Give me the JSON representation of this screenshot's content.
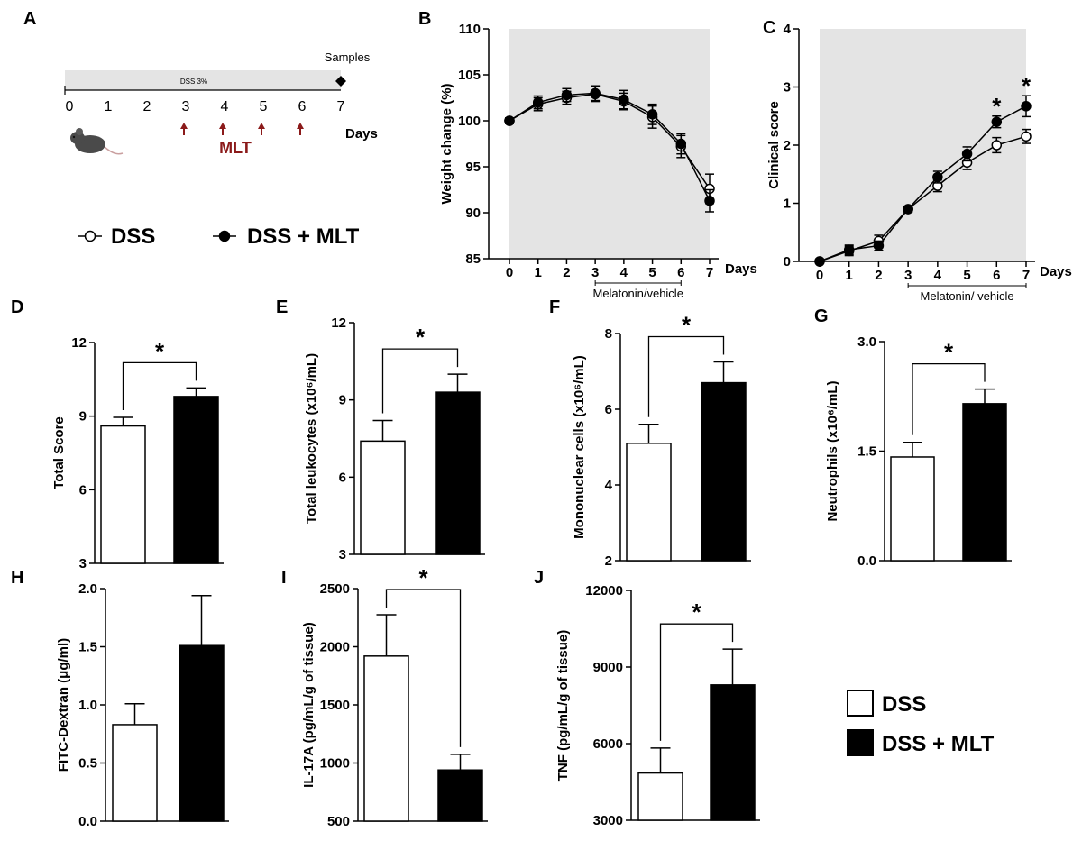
{
  "legend_top": {
    "dss": "DSS",
    "dss_mlt": "DSS + MLT"
  },
  "legend_bottom": {
    "dss": "DSS",
    "dss_mlt": "DSS + MLT"
  },
  "colors": {
    "dss": "#ffffff",
    "dss_mlt": "#000000",
    "shade": "#e4e4e4",
    "arrow": "#8b1a1a"
  },
  "timeline": {
    "panel": "A",
    "bar_label": "DSS 3%",
    "samples_label": "Samples",
    "days_label": "Days",
    "treatment_label": "MLT",
    "ticks": [
      "0",
      "1",
      "2",
      "3",
      "4",
      "5",
      "6",
      "7"
    ],
    "treatment_days": [
      3,
      4,
      5,
      6
    ]
  },
  "chart_data": [
    {
      "panel": "B",
      "type": "line",
      "ylabel": "Weight change (%)",
      "xlabel": "Days",
      "x": [
        0,
        1,
        2,
        3,
        4,
        5,
        6,
        7
      ],
      "ylim": [
        85,
        110
      ],
      "yticks": [
        85,
        90,
        95,
        100,
        105,
        110
      ],
      "shaded": true,
      "bracket": {
        "from": 3,
        "to": 6,
        "label": "Melatonin/vehicle"
      },
      "series": [
        {
          "key": "dss",
          "values": [
            100,
            101.8,
            102.5,
            102.9,
            102.1,
            100.4,
            97.2,
            92.6
          ],
          "errors": [
            0.3,
            0.7,
            0.7,
            0.8,
            0.9,
            1.2,
            1.2,
            1.6
          ]
        },
        {
          "key": "dss_mlt",
          "values": [
            100,
            102.0,
            102.8,
            103.0,
            102.3,
            100.7,
            97.5,
            91.3
          ],
          "errors": [
            0.3,
            0.7,
            0.7,
            0.8,
            1.0,
            1.1,
            1.1,
            1.2
          ]
        }
      ],
      "stars_x": []
    },
    {
      "panel": "C",
      "type": "line",
      "ylabel": "Clinical score",
      "xlabel": "Days",
      "x": [
        0,
        1,
        2,
        3,
        4,
        5,
        6,
        7
      ],
      "ylim": [
        0,
        4
      ],
      "yticks": [
        0,
        1,
        2,
        3,
        4
      ],
      "shaded": true,
      "bracket": {
        "from": 3,
        "to": 7,
        "label": "Melatonin/ vehicle"
      },
      "series": [
        {
          "key": "dss",
          "values": [
            0,
            0.18,
            0.35,
            0.9,
            1.3,
            1.7,
            2.0,
            2.15
          ],
          "errors": [
            0.02,
            0.08,
            0.1,
            0.05,
            0.1,
            0.12,
            0.13,
            0.12
          ]
        },
        {
          "key": "dss_mlt",
          "values": [
            0,
            0.2,
            0.27,
            0.9,
            1.45,
            1.85,
            2.4,
            2.67
          ],
          "errors": [
            0.02,
            0.08,
            0.08,
            0.05,
            0.1,
            0.12,
            0.1,
            0.18
          ]
        }
      ],
      "stars_x": [
        6,
        7
      ]
    },
    {
      "panel": "D",
      "type": "bar",
      "ylabel": "Total Score",
      "ylim": [
        3,
        12
      ],
      "yticks": [
        3,
        6,
        9,
        12
      ],
      "yticklabels": [
        "3",
        "6",
        "9",
        "12"
      ],
      "values": [
        8.6,
        9.8
      ],
      "errors": [
        0.35,
        0.35
      ],
      "star": "*"
    },
    {
      "panel": "E",
      "type": "bar",
      "ylabel": "Total leukocytes (x10⁶/mL)",
      "ylim": [
        3,
        12
      ],
      "yticks": [
        3,
        6,
        9,
        12
      ],
      "yticklabels": [
        "3",
        "6",
        "9",
        "12"
      ],
      "values": [
        7.4,
        9.3
      ],
      "errors": [
        0.8,
        0.7
      ],
      "star": "*"
    },
    {
      "panel": "F",
      "type": "bar",
      "ylabel": "Mononuclear cells (x10⁶/mL)",
      "ylim": [
        2,
        8
      ],
      "yticks": [
        2,
        4,
        6,
        8
      ],
      "yticklabels": [
        "2",
        "4",
        "6",
        "8"
      ],
      "values": [
        5.1,
        6.7
      ],
      "errors": [
        0.5,
        0.55
      ],
      "star": "*"
    },
    {
      "panel": "G",
      "type": "bar",
      "ylabel": "Neutrophils (x10⁶/mL)",
      "ylim": [
        0,
        3
      ],
      "yticks": [
        0,
        1.5,
        3
      ],
      "yticklabels": [
        "0.0",
        "1.5",
        "3.0"
      ],
      "values": [
        1.42,
        2.15
      ],
      "errors": [
        0.2,
        0.2
      ],
      "star": "*"
    },
    {
      "panel": "H",
      "type": "bar",
      "ylabel": "FITC-Dextran (μg/ml)",
      "ylim": [
        0,
        2
      ],
      "yticks": [
        0,
        0.5,
        1,
        1.5,
        2
      ],
      "yticklabels": [
        "0.0",
        "0.5",
        "1.0",
        "1.5",
        "2.0"
      ],
      "values": [
        0.83,
        1.51
      ],
      "errors": [
        0.18,
        0.43
      ],
      "star": ""
    },
    {
      "panel": "I",
      "type": "bar",
      "ylabel": "IL-17A (pg/mL/g of tissue)",
      "ylim": [
        500,
        2500
      ],
      "yticks": [
        500,
        1000,
        1500,
        2000,
        2500
      ],
      "yticklabels": [
        "500",
        "1000",
        "1500",
        "2000",
        "2500"
      ],
      "values": [
        1920,
        940
      ],
      "errors": [
        355,
        135
      ],
      "star": "*"
    },
    {
      "panel": "J",
      "type": "bar",
      "ylabel": "TNF (pg/mL/g of tissue)",
      "ylim": [
        3000,
        12000
      ],
      "yticks": [
        3000,
        6000,
        9000,
        12000
      ],
      "yticklabels": [
        "3000",
        "6000",
        "9000",
        "12000"
      ],
      "values": [
        4850,
        8300
      ],
      "errors": [
        980,
        1400
      ],
      "star": "*"
    }
  ]
}
